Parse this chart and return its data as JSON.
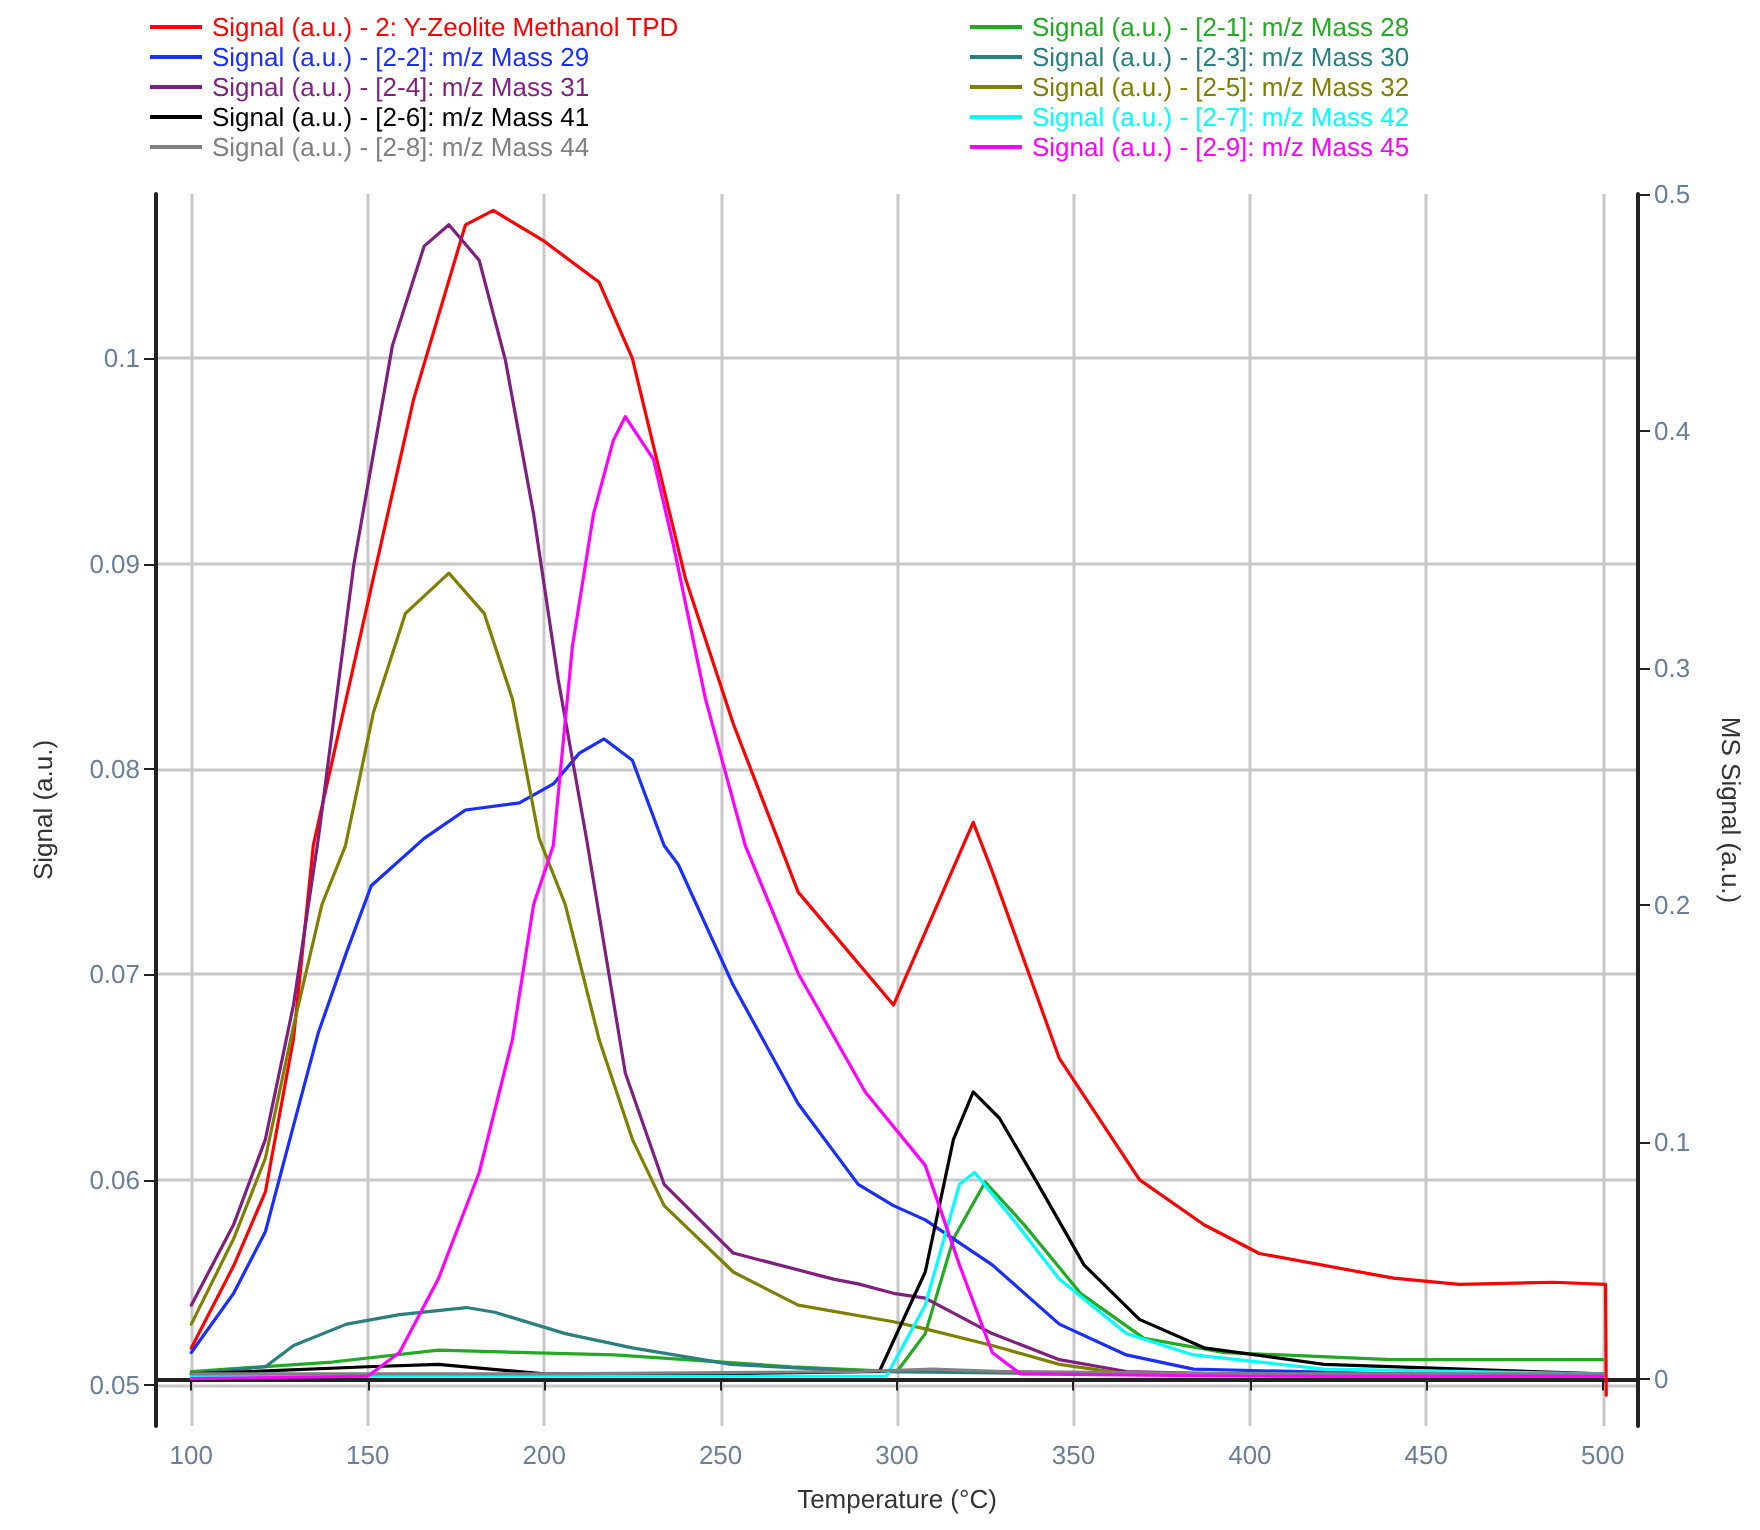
{
  "chart_data": {
    "type": "line",
    "xlabel": "Temperature (°C)",
    "ylabel": "Signal (a.u.)",
    "y2label": "MS Signal (a.u.)",
    "xlim": [
      90,
      510
    ],
    "xticks": [
      100,
      150,
      200,
      250,
      300,
      350,
      400,
      450,
      500
    ],
    "ylim": [
      0.048,
      0.108
    ],
    "yticks": [
      0.05,
      0.06,
      0.07,
      0.08,
      0.09,
      0.1
    ],
    "y2lim": [
      -0.02,
      0.5
    ],
    "y2ticks": [
      0.0,
      0.1,
      0.2,
      0.3,
      0.4,
      0.5
    ],
    "grid": true,
    "legend": "top",
    "marker": "none",
    "line_style": "solid",
    "series": [
      {
        "name": "Signal (a.u.) - 2: Y-Zeolite Methanol TPD",
        "color": "#ff0000",
        "x": [
          100,
          112,
          121,
          129,
          134.6,
          151.6,
          163,
          177.7,
          185.6,
          200,
          215.6,
          225,
          240,
          253.6,
          272,
          299,
          321.6,
          327,
          346,
          368.7,
          387,
          402.7,
          440.7,
          459.4,
          486,
          500.8,
          501
        ],
        "values": [
          0.0518,
          0.0558,
          0.0594,
          0.0669,
          0.0763,
          0.0893,
          0.098,
          0.1065,
          0.1072,
          0.1057,
          0.1037,
          0.1,
          0.0893,
          0.0822,
          0.074,
          0.0685,
          0.0774,
          0.075,
          0.0659,
          0.06,
          0.0578,
          0.0564,
          0.0552,
          0.0549,
          0.055,
          0.0549,
          0.0495
        ]
      },
      {
        "name": "Signal (a.u.) - [2-1]: m/z Mass 28",
        "color": "#22aa22",
        "axis": "y2",
        "x": [
          100,
          140,
          170,
          220,
          270,
          300,
          308,
          316,
          325,
          336,
          352,
          370,
          393,
          440,
          500
        ],
        "values": [
          0.003,
          0.007,
          0.012,
          0.01,
          0.005,
          0.003,
          0.019,
          0.059,
          0.083,
          0.065,
          0.036,
          0.017,
          0.011,
          0.008,
          0.008
        ]
      },
      {
        "name": "Signal (a.u.) - [2-2]: m/z Mass 29",
        "color": "#1a2eff",
        "axis": "y2",
        "x": [
          100,
          112,
          121,
          129,
          136,
          144,
          151,
          166,
          177.7,
          193,
          202.6,
          210,
          217,
          225,
          234,
          238,
          253.6,
          272,
          289,
          299,
          308,
          327,
          346,
          365,
          384,
          440,
          500
        ],
        "values": [
          0.011,
          0.036,
          0.062,
          0.107,
          0.146,
          0.18,
          0.208,
          0.228,
          0.24,
          0.243,
          0.251,
          0.264,
          0.27,
          0.261,
          0.225,
          0.217,
          0.166,
          0.116,
          0.082,
          0.073,
          0.067,
          0.048,
          0.023,
          0.01,
          0.004,
          0.002,
          0.001
        ]
      },
      {
        "name": "Signal (a.u.) - [2-3]: m/z Mass 30",
        "color": "#2a7f7f",
        "axis": "y2",
        "x": [
          100,
          121,
          129,
          144,
          159,
          178,
          186,
          206,
          225,
          253,
          290,
          350,
          420,
          500
        ],
        "values": [
          0.002,
          0.005,
          0.014,
          0.023,
          0.027,
          0.03,
          0.028,
          0.019,
          0.013,
          0.006,
          0.003,
          0.002,
          0.002,
          0.002
        ]
      },
      {
        "name": "Signal (a.u.) - [2-4]: m/z Mass 31",
        "color": "#7f1f7f",
        "axis": "y2",
        "x": [
          100,
          112,
          121,
          129,
          136,
          146,
          157,
          166,
          173,
          181.6,
          189,
          197,
          204,
          212,
          223,
          234,
          253.6,
          282,
          289,
          299,
          308,
          327,
          346,
          365,
          420,
          500
        ],
        "values": [
          0.031,
          0.065,
          0.101,
          0.158,
          0.228,
          0.343,
          0.436,
          0.478,
          0.487,
          0.472,
          0.43,
          0.365,
          0.295,
          0.228,
          0.129,
          0.082,
          0.053,
          0.042,
          0.04,
          0.036,
          0.034,
          0.019,
          0.008,
          0.003,
          0.001,
          0.001
        ]
      },
      {
        "name": "Signal (a.u.) - [2-5]: m/z Mass 32",
        "color": "#808000",
        "axis": "y2",
        "x": [
          100,
          112,
          121,
          129,
          137,
          143.7,
          151.6,
          160.7,
          173,
          183,
          191,
          198.6,
          206,
          215.6,
          225,
          234,
          253.6,
          272,
          299,
          308,
          327,
          346,
          365,
          420,
          500
        ],
        "values": [
          0.023,
          0.059,
          0.093,
          0.149,
          0.2,
          0.225,
          0.281,
          0.323,
          0.34,
          0.323,
          0.287,
          0.228,
          0.2,
          0.143,
          0.101,
          0.073,
          0.045,
          0.031,
          0.024,
          0.021,
          0.014,
          0.006,
          0.002,
          0.001,
          0.001
        ]
      },
      {
        "name": "Signal (a.u.) - [2-6]: m/z Mass 41",
        "color": "#000000",
        "axis": "y2",
        "x": [
          100,
          150,
          170,
          200,
          250,
          295,
          308,
          316,
          321.6,
          329,
          340,
          353,
          368.7,
          387,
          421,
          460,
          500
        ],
        "values": [
          0.002,
          0.005,
          0.006,
          0.002,
          0.002,
          0.003,
          0.045,
          0.101,
          0.121,
          0.11,
          0.082,
          0.048,
          0.025,
          0.013,
          0.006,
          0.004,
          0.002
        ]
      },
      {
        "name": "Signal (a.u.) - [2-7]: m/z Mass 42",
        "color": "#00ffff",
        "axis": "y2",
        "x": [
          100,
          200,
          297,
          308,
          317.7,
          322,
          333,
          346,
          365,
          384,
          421,
          500
        ],
        "values": [
          0.001,
          0.001,
          0.001,
          0.031,
          0.082,
          0.087,
          0.067,
          0.042,
          0.019,
          0.01,
          0.004,
          0.002
        ]
      },
      {
        "name": "Signal (a.u.) - [2-8]: m/z Mass 44",
        "color": "#808080",
        "axis": "y2",
        "x": [
          100,
          200,
          290,
          310,
          330,
          400,
          500
        ],
        "values": [
          0.002,
          0.002,
          0.003,
          0.004,
          0.003,
          0.002,
          0.002
        ]
      },
      {
        "name": "Signal (a.u.) - [2-9]: m/z Mass 45",
        "color": "#ff00ff",
        "axis": "y2",
        "x": [
          100,
          150,
          159,
          170,
          181.6,
          191,
          197,
          202.6,
          208,
          214,
          219.6,
          223,
          231,
          236.6,
          245.7,
          257,
          272,
          291,
          308,
          317.7,
          327,
          335,
          400,
          500
        ],
        "values": [
          0.0,
          0.001,
          0.011,
          0.042,
          0.087,
          0.143,
          0.2,
          0.225,
          0.309,
          0.365,
          0.396,
          0.406,
          0.388,
          0.352,
          0.287,
          0.225,
          0.171,
          0.121,
          0.09,
          0.048,
          0.011,
          0.002,
          0.001,
          0.001
        ]
      }
    ]
  }
}
